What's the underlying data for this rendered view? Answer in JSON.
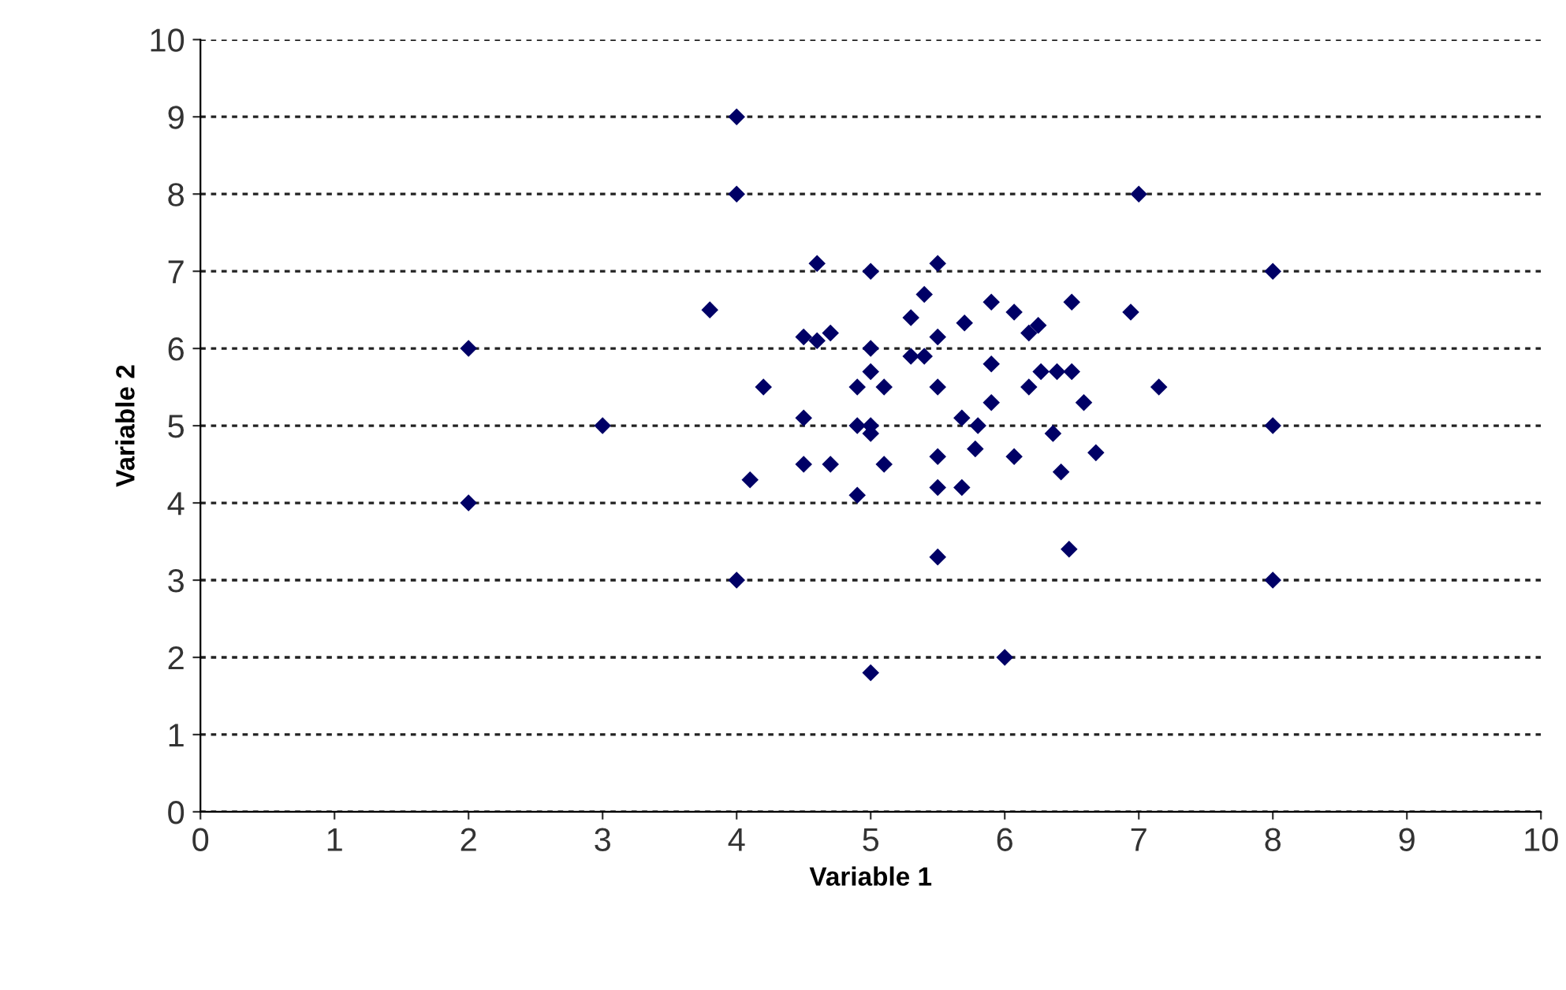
{
  "chart_data": {
    "type": "scatter",
    "xlabel": "Variable 1",
    "ylabel": "Variable 2",
    "xlim": [
      0,
      10
    ],
    "ylim": [
      0,
      10
    ],
    "xticks": [
      0,
      1,
      2,
      3,
      4,
      5,
      6,
      7,
      8,
      9,
      10
    ],
    "yticks": [
      0,
      1,
      2,
      3,
      4,
      5,
      6,
      7,
      8,
      9,
      10
    ],
    "grid": "y",
    "marker": "diamond",
    "series": [
      {
        "color": "#000066",
        "x": [
          2,
          2,
          3,
          4,
          4,
          4,
          7,
          8,
          8,
          8,
          5,
          6,
          3.8,
          4.2,
          4.1,
          4.5,
          4.6,
          4.7,
          4.6,
          4.5,
          4.5,
          4.7,
          5,
          5,
          5,
          4.9,
          5.1,
          4.9,
          5,
          5.0,
          5.1,
          4.9,
          5.3,
          5.4,
          5.5,
          5.3,
          5.4,
          5.5,
          5.5,
          5.5,
          5.5,
          5.5,
          5.7,
          5.9,
          6.07,
          6.5,
          6.94,
          6.25,
          6.18,
          5.9,
          6.27,
          6.39,
          6.5,
          6.18,
          7.15,
          5.9,
          6.59,
          5.68,
          5.8,
          6.36,
          5.78,
          6.07,
          6.68,
          6.42,
          5.68,
          6.48
        ],
        "values": [
          6,
          4,
          5,
          9,
          8,
          3,
          8,
          7,
          5,
          3,
          1.8,
          2,
          6.5,
          5.5,
          4.3,
          6.15,
          6.1,
          6.2,
          7.1,
          5.1,
          4.5,
          4.5,
          7,
          6,
          5.7,
          5.5,
          5.5,
          5,
          5,
          4.9,
          4.5,
          4.1,
          6.4,
          6.7,
          7.1,
          5.9,
          5.9,
          6.15,
          5.5,
          4.6,
          4.2,
          3.3,
          6.33,
          6.6,
          6.47,
          6.6,
          6.47,
          6.3,
          6.2,
          5.8,
          5.7,
          5.7,
          5.7,
          5.5,
          5.5,
          5.3,
          5.3,
          5.1,
          5,
          4.9,
          4.7,
          4.6,
          4.65,
          4.4,
          4.2,
          3.4
        ]
      }
    ]
  }
}
